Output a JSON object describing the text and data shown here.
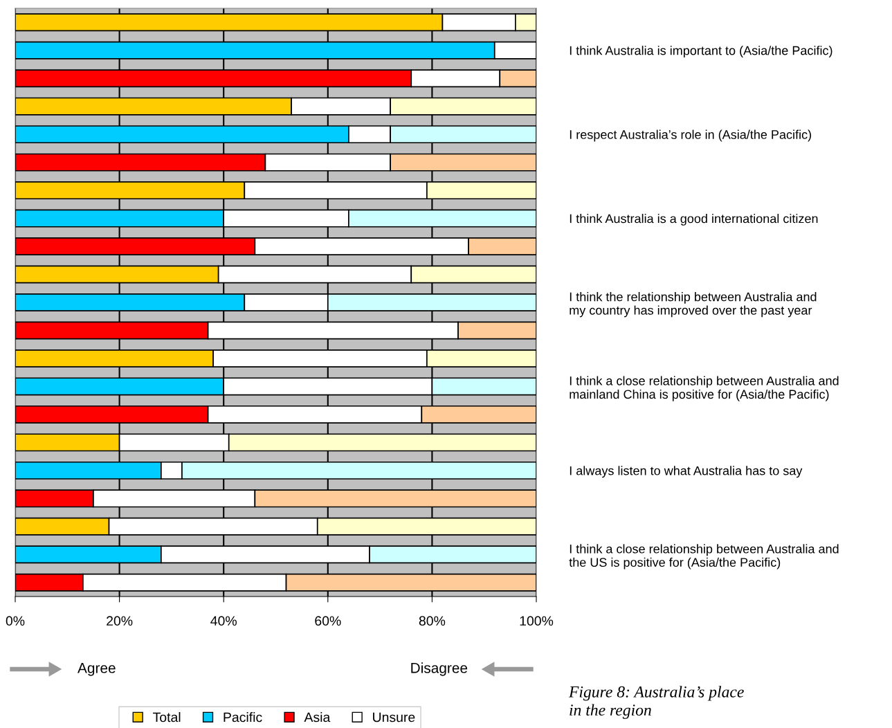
{
  "chart_data": {
    "type": "bar",
    "orientation": "horizontal",
    "stacked": true,
    "title": "Figure 8: Australia’s place\nin the region",
    "categories": [
      null,
      "I think Australia is important to (Asia/the Pacific)",
      null,
      null,
      "I respect Australia’s role in (Asia/the Pacific)",
      null,
      null,
      "I think Australia is a good international citizen",
      null,
      null,
      "I think the relationship between Australia and\nmy country has improved over the past year",
      null,
      null,
      "I think a close relationship between Australia and\nmainland China is positive for (Asia/the Pacific)",
      null,
      null,
      "I always listen to what Australia has to say",
      null,
      null,
      "I think a close relationship between Australia and\nthe US is positive for (Asia/the Pacific)",
      null
    ],
    "series": [
      {
        "name": "Total",
        "color": "#ffcc00",
        "values": [
          82,
          null,
          null,
          53,
          null,
          null,
          44,
          null,
          null,
          39,
          null,
          null,
          38,
          null,
          null,
          20,
          null,
          null,
          18,
          null,
          null
        ]
      },
      {
        "name": "Pacific",
        "color": "#00ccff",
        "values": [
          null,
          92,
          null,
          null,
          64,
          null,
          null,
          40,
          null,
          null,
          44,
          null,
          null,
          40,
          null,
          null,
          28,
          null,
          null,
          28,
          null
        ]
      },
      {
        "name": "Asia",
        "color": "#ff0000",
        "values": [
          null,
          null,
          76,
          null,
          null,
          48,
          null,
          null,
          46,
          null,
          null,
          37,
          null,
          null,
          37,
          null,
          null,
          15,
          null,
          null,
          13
        ]
      },
      {
        "name": "Unsure",
        "color": "#ffffff",
        "values": [
          14,
          8,
          17,
          19,
          8,
          24,
          35,
          24,
          41,
          37,
          16,
          48,
          41,
          40,
          41,
          21,
          4,
          31,
          40,
          40,
          39
        ]
      },
      {
        "color": "#ffffcc",
        "values": [
          4,
          null,
          null,
          28,
          null,
          null,
          21,
          null,
          null,
          24,
          null,
          null,
          21,
          null,
          null,
          59,
          null,
          null,
          42,
          null,
          null
        ]
      },
      {
        "color": "#ccffff",
        "values": [
          null,
          null,
          null,
          null,
          28,
          null,
          null,
          36,
          null,
          null,
          40,
          null,
          null,
          20,
          null,
          null,
          68,
          null,
          null,
          32,
          null
        ]
      },
      {
        "color": "#ffcc99",
        "values": [
          null,
          null,
          7,
          null,
          null,
          28,
          null,
          null,
          13,
          null,
          null,
          15,
          null,
          null,
          22,
          null,
          null,
          54,
          null,
          null,
          48
        ]
      }
    ],
    "xlim": [
      0,
      100
    ],
    "xticks": [
      {
        "value": 0,
        "label": "0%"
      },
      {
        "value": 20,
        "label": "20%"
      },
      {
        "value": 40,
        "label": "40%"
      },
      {
        "value": 60,
        "label": "60%"
      },
      {
        "value": 80,
        "label": "80%"
      },
      {
        "value": 100,
        "label": "100%"
      }
    ],
    "grid": "x",
    "legend": "bottom",
    "annotations": [
      "Agree",
      "Disagree"
    ]
  }
}
